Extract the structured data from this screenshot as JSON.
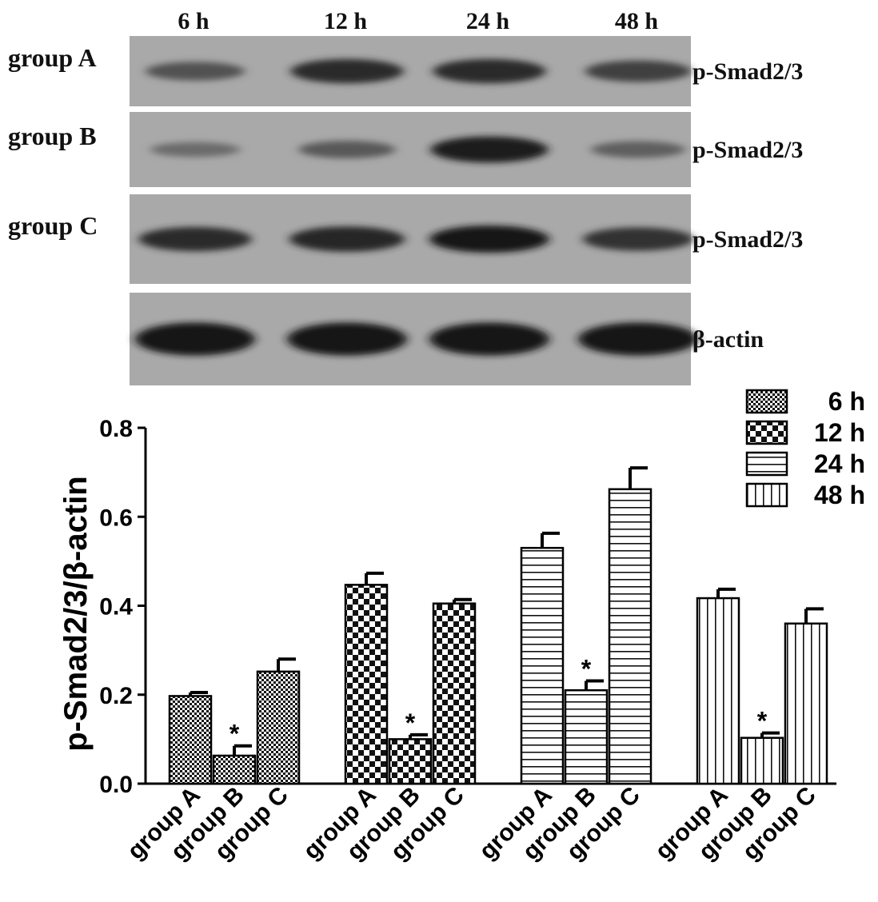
{
  "blot": {
    "time_labels": [
      "6 h",
      "12 h",
      "24 h",
      "48 h"
    ],
    "rows": [
      {
        "group": "group A",
        "marker": "p-Smad2/3",
        "intensity": [
          0.55,
          0.85,
          0.85,
          0.7
        ]
      },
      {
        "group": "group B",
        "marker": "p-Smad2/3",
        "intensity": [
          0.35,
          0.5,
          0.95,
          0.45
        ]
      },
      {
        "group": "group C",
        "marker": "p-Smad2/3",
        "intensity": [
          0.85,
          0.9,
          1.0,
          0.8
        ]
      },
      {
        "group": "",
        "marker": "β-actin",
        "intensity": [
          1.0,
          1.0,
          1.0,
          1.0
        ]
      }
    ]
  },
  "chart_data": {
    "type": "bar",
    "title": "",
    "xlabel": "",
    "ylabel": "p-Smad2/3/β-actin",
    "ylim": [
      0,
      0.8
    ],
    "yticks": [
      "0.0",
      "0.2",
      "0.4",
      "0.6",
      "0.8"
    ],
    "grid": false,
    "legend_placement": "top-right",
    "categories": [
      "group A",
      "group B",
      "group C"
    ],
    "series": [
      {
        "name": "6 h",
        "pattern": "fine-checker",
        "values": [
          0.197,
          0.063,
          0.252
        ],
        "errors": [
          0.008,
          0.022,
          0.028
        ],
        "significant": [
          "",
          "*",
          ""
        ]
      },
      {
        "name": "12 h",
        "pattern": "coarse-checker",
        "values": [
          0.447,
          0.1,
          0.405
        ],
        "errors": [
          0.026,
          0.01,
          0.009
        ],
        "significant": [
          "",
          "*",
          ""
        ]
      },
      {
        "name": "24 h",
        "pattern": "horizontal-lines",
        "values": [
          0.53,
          0.21,
          0.662
        ],
        "errors": [
          0.033,
          0.021,
          0.048
        ],
        "significant": [
          "",
          "*",
          ""
        ]
      },
      {
        "name": "48 h",
        "pattern": "vertical-lines",
        "values": [
          0.417,
          0.103,
          0.36
        ],
        "errors": [
          0.02,
          0.011,
          0.033
        ],
        "significant": [
          "",
          "*",
          ""
        ]
      }
    ]
  }
}
